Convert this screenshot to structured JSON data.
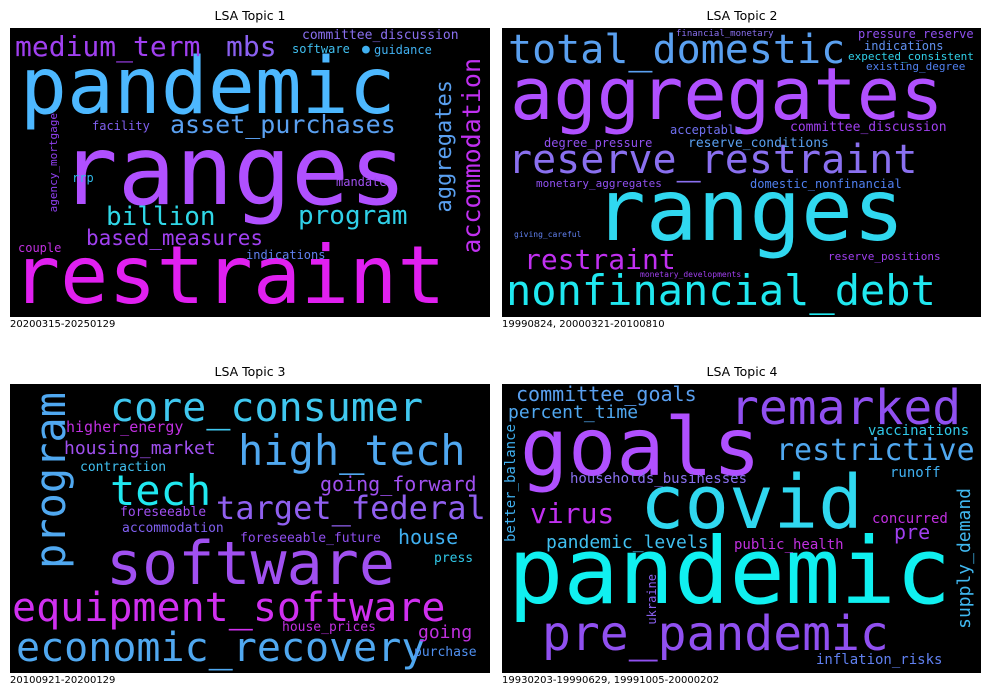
{
  "panels": [
    {
      "title": "LSA Topic 1",
      "caption": "20200315-20250129",
      "words": [
        {
          "text": "ranges",
          "color": "#b050ff"
        },
        {
          "text": "pandemic",
          "color": "#4db8ff"
        },
        {
          "text": "restraint",
          "color": "#e020f0"
        },
        {
          "text": "medium_term",
          "color": "#a040f0"
        },
        {
          "text": "mbs",
          "color": "#8a60f0"
        },
        {
          "text": "asset_purchases",
          "color": "#5aa0f0"
        },
        {
          "text": "billion",
          "color": "#30d8e8"
        },
        {
          "text": "program",
          "color": "#30d0e8"
        },
        {
          "text": "based_measures",
          "color": "#a040f0"
        },
        {
          "text": "accommodation",
          "color": "#c030f0"
        },
        {
          "text": "aggregates",
          "color": "#5aa0f0"
        },
        {
          "text": "committee_discussion",
          "color": "#8a70f0"
        },
        {
          "text": "software",
          "color": "#40c0f0"
        },
        {
          "text": "guidance",
          "color": "#40b0f0"
        },
        {
          "text": "facility",
          "color": "#8060f0"
        },
        {
          "text": "agency_mortgage",
          "color": "#9040f0"
        },
        {
          "text": "rrp",
          "color": "#30b8e8"
        },
        {
          "text": "mandate",
          "color": "#a050f0"
        },
        {
          "text": "couple",
          "color": "#c030e0"
        },
        {
          "text": "indications",
          "color": "#6080f0"
        }
      ]
    },
    {
      "title": "LSA Topic 2",
      "caption": "19990824, 20000321-20100810",
      "words": [
        {
          "text": "aggregates",
          "color": "#b050ff"
        },
        {
          "text": "ranges",
          "color": "#30d8f0"
        },
        {
          "text": "total_domestic",
          "color": "#5aa0f0"
        },
        {
          "text": "reserve_restraint",
          "color": "#8a70f0"
        },
        {
          "text": "nonfinancial_debt",
          "color": "#20e8f0"
        },
        {
          "text": "restraint",
          "color": "#c030f0"
        },
        {
          "text": "financial_monetary",
          "color": "#8a70f0"
        },
        {
          "text": "pressure_reserve",
          "color": "#9050f0"
        },
        {
          "text": "indications",
          "color": "#6090f0"
        },
        {
          "text": "expected_consistent",
          "color": "#30d0e8"
        },
        {
          "text": "existing_degree",
          "color": "#5080f0"
        },
        {
          "text": "acceptable",
          "color": "#7070f0"
        },
        {
          "text": "committee_discussion",
          "color": "#a040f0"
        },
        {
          "text": "degree_pressure",
          "color": "#9050f0"
        },
        {
          "text": "reserve_conditions",
          "color": "#5aa0f0"
        },
        {
          "text": "monetary_aggregates",
          "color": "#9050f0"
        },
        {
          "text": "domestic_nonfinancial",
          "color": "#5080f0"
        },
        {
          "text": "giving_careful",
          "color": "#6080f0"
        },
        {
          "text": "monetary_developments",
          "color": "#a040f0"
        },
        {
          "text": "reserve_positions",
          "color": "#a040f0"
        }
      ]
    },
    {
      "title": "LSA Topic 3",
      "caption": "20100921-20200129",
      "words": [
        {
          "text": "software",
          "color": "#a050f0"
        },
        {
          "text": "core_consumer",
          "color": "#40c8f0"
        },
        {
          "text": "high_tech",
          "color": "#50a8f0"
        },
        {
          "text": "program",
          "color": "#50a8f0"
        },
        {
          "text": "tech",
          "color": "#20e8f0"
        },
        {
          "text": "target_federal",
          "color": "#9060f0"
        },
        {
          "text": "equipment_software",
          "color": "#d030f0"
        },
        {
          "text": "economic_recovery",
          "color": "#50a8f0"
        },
        {
          "text": "higher_energy",
          "color": "#c030e0"
        },
        {
          "text": "housing_market",
          "color": "#a050f0"
        },
        {
          "text": "contraction",
          "color": "#40c0f0"
        },
        {
          "text": "going_forward",
          "color": "#a050f0"
        },
        {
          "text": "foreseeable",
          "color": "#a050f0"
        },
        {
          "text": "accommodation",
          "color": "#8060f0"
        },
        {
          "text": "foreseeable_future",
          "color": "#9050f0"
        },
        {
          "text": "house",
          "color": "#40b0f0"
        },
        {
          "text": "press",
          "color": "#30c8e8"
        },
        {
          "text": "house_prices",
          "color": "#c030e0"
        },
        {
          "text": "going",
          "color": "#c030e0"
        },
        {
          "text": "purchase",
          "color": "#5090f0"
        }
      ]
    },
    {
      "title": "LSA Topic 4",
      "caption": "19930203-19990629, 19991005-20000202",
      "words": [
        {
          "text": "pandemic",
          "color": "#10f0f0"
        },
        {
          "text": "goals",
          "color": "#b050ff"
        },
        {
          "text": "covid",
          "color": "#30d8f0"
        },
        {
          "text": "remarked",
          "color": "#9050f0"
        },
        {
          "text": "pre_pandemic",
          "color": "#9050f0"
        },
        {
          "text": "restrictive",
          "color": "#50a8f0"
        },
        {
          "text": "committee_goals",
          "color": "#5aa0f0"
        },
        {
          "text": "percent_time",
          "color": "#50a8f0"
        },
        {
          "text": "virus",
          "color": "#c030f0"
        },
        {
          "text": "vaccinations",
          "color": "#30c8e8"
        },
        {
          "text": "runoff",
          "color": "#40b0f0"
        },
        {
          "text": "households_businesses",
          "color": "#8a70f0"
        },
        {
          "text": "better_balance",
          "color": "#40b0f0"
        },
        {
          "text": "pandemic_levels",
          "color": "#40c0f0"
        },
        {
          "text": "public_health",
          "color": "#c030e0"
        },
        {
          "text": "concurred",
          "color": "#c030e0"
        },
        {
          "text": "pre",
          "color": "#a040f0"
        },
        {
          "text": "supply_demand",
          "color": "#40b8f0"
        },
        {
          "text": "ukraine",
          "color": "#8a60f0"
        },
        {
          "text": "inflation_risks",
          "color": "#6080f0"
        }
      ]
    }
  ]
}
